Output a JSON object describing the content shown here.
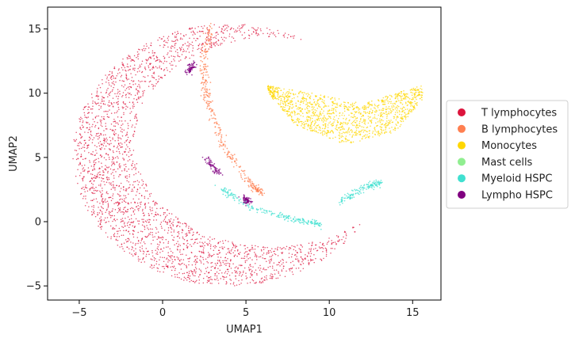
{
  "chart_data": {
    "type": "scatter",
    "title": "",
    "xlabel": "UMAP1",
    "ylabel": "UMAP2",
    "xlim": [
      -6.9,
      16.7
    ],
    "ylim": [
      -6.1,
      16.7
    ],
    "xticks": [
      -5,
      0,
      5,
      10,
      15
    ],
    "yticks": [
      -5,
      0,
      5,
      10,
      15
    ],
    "grid": false,
    "legend_position": "right",
    "series": [
      {
        "name": "T lymphocytes",
        "color": "#dc143c",
        "regions": [
          {
            "shape": "crescent",
            "outer_center": [
              4.0,
              5.2
            ],
            "outer_radius": 10.2,
            "inner_center": [
              6.6,
              6.2
            ],
            "inner_radius": 8.3,
            "y_range": [
              -5.2,
              15.6
            ]
          }
        ]
      },
      {
        "name": "B lymphocytes",
        "color": "#ff7f50",
        "regions": [
          {
            "shape": "strand",
            "points": [
              [
                2.9,
                15.3
              ],
              [
                2.4,
                12.0
              ],
              [
                2.7,
                9.5
              ],
              [
                3.6,
                6.0
              ],
              [
                5.2,
                3.0
              ],
              [
                6.0,
                2.2
              ]
            ]
          }
        ]
      },
      {
        "name": "Monocytes",
        "color": "#ffd700",
        "regions": [
          {
            "shape": "band",
            "x_range": [
              6.3,
              15.6
            ],
            "top_curve": [
              [
                6.3,
                10.6
              ],
              [
                9.0,
                10.0
              ],
              [
                12.0,
                9.2
              ],
              [
                15.5,
                10.6
              ]
            ],
            "bottom_curve": [
              [
                6.3,
                10.0
              ],
              [
                8.0,
                7.5
              ],
              [
                11.0,
                6.0
              ],
              [
                14.0,
                7.0
              ],
              [
                15.6,
                9.5
              ]
            ]
          }
        ]
      },
      {
        "name": "Mast cells",
        "color": "#90ee90",
        "regions": []
      },
      {
        "name": "Myeloid HSPC",
        "color": "#40e0d0",
        "regions": [
          {
            "shape": "strand",
            "points": [
              [
                3.5,
                2.6
              ],
              [
                5.5,
                1.0
              ],
              [
                8.0,
                0.2
              ],
              [
                9.6,
                -0.3
              ]
            ]
          },
          {
            "shape": "strand",
            "points": [
              [
                10.5,
                1.4
              ],
              [
                12.2,
                2.7
              ],
              [
                13.0,
                3.0
              ]
            ]
          }
        ]
      },
      {
        "name": "Lympho HSPC",
        "color": "#800080",
        "regions": [
          {
            "shape": "strand",
            "points": [
              [
                1.5,
                11.6
              ],
              [
                1.9,
                12.4
              ]
            ]
          },
          {
            "shape": "strand",
            "points": [
              [
                2.6,
                4.9
              ],
              [
                3.4,
                3.7
              ]
            ]
          },
          {
            "shape": "strand",
            "points": [
              [
                4.9,
                1.8
              ],
              [
                5.2,
                1.5
              ]
            ]
          }
        ]
      }
    ]
  }
}
